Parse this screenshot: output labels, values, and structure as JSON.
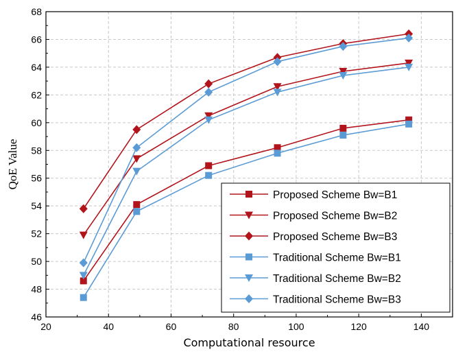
{
  "chart_data": {
    "type": "line",
    "title": "",
    "xlabel": "Computational resource",
    "ylabel": "QoE Value",
    "xlim": [
      20,
      150
    ],
    "ylim": [
      46,
      68
    ],
    "xticks": [
      20,
      40,
      60,
      80,
      100,
      120,
      140
    ],
    "yticks": [
      46,
      48,
      50,
      52,
      54,
      56,
      58,
      60,
      62,
      64,
      66,
      68
    ],
    "grid": true,
    "legend_position": "bottom-right",
    "x": [
      32,
      49,
      72,
      94,
      115,
      136
    ],
    "series": [
      {
        "name": "Proposed Scheme Bw=B1",
        "color": "#b2141c",
        "marker": "square",
        "values": [
          48.6,
          54.1,
          56.9,
          58.2,
          59.6,
          60.2
        ]
      },
      {
        "name": "Proposed Scheme Bw=B2",
        "color": "#b2141c",
        "marker": "triangle-down",
        "values": [
          51.9,
          57.4,
          60.5,
          62.6,
          63.7,
          64.3
        ]
      },
      {
        "name": "Proposed Scheme Bw=B3",
        "color": "#b2141c",
        "marker": "diamond",
        "values": [
          53.8,
          59.5,
          62.8,
          64.7,
          65.7,
          66.4
        ]
      },
      {
        "name": "Traditional Scheme Bw=B1",
        "color": "#5b9bd5",
        "marker": "square",
        "values": [
          47.4,
          53.6,
          56.2,
          57.8,
          59.1,
          59.9
        ]
      },
      {
        "name": "Traditional Scheme Bw=B2",
        "color": "#5b9bd5",
        "marker": "triangle-down",
        "values": [
          49.0,
          56.5,
          60.2,
          62.2,
          63.4,
          64.0
        ]
      },
      {
        "name": "Traditional Scheme Bw=B3",
        "color": "#5b9bd5",
        "marker": "diamond",
        "values": [
          49.9,
          58.2,
          62.2,
          64.4,
          65.5,
          66.1
        ]
      }
    ]
  }
}
